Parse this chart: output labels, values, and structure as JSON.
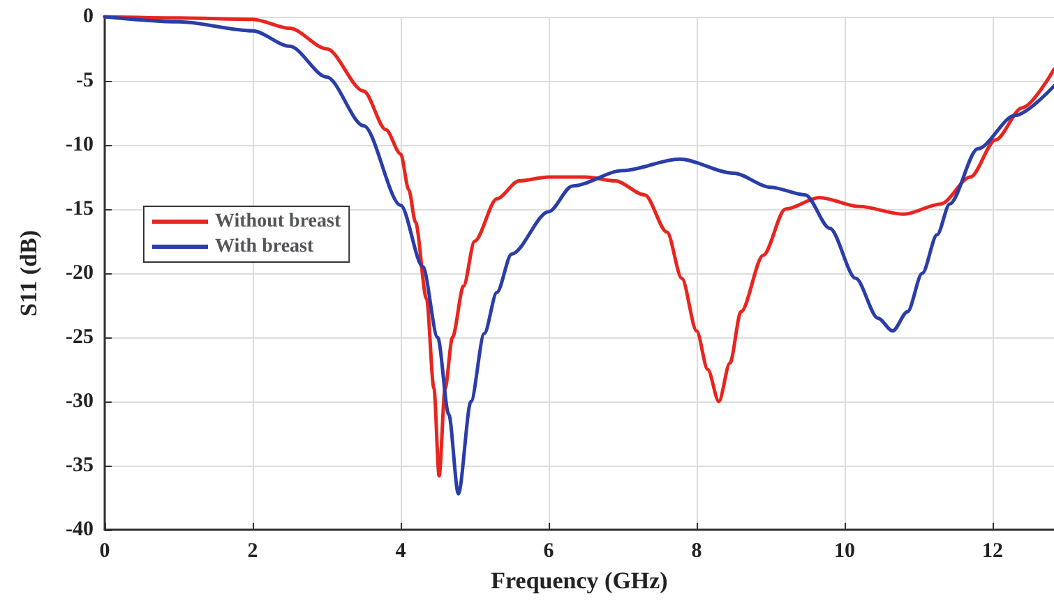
{
  "chart_data": {
    "type": "line",
    "xlabel": "Frequency (GHz)",
    "ylabel": "S11 (dB)",
    "xlim": [
      0,
      12.83
    ],
    "xticks": [
      0,
      2,
      4,
      6,
      8,
      10,
      12
    ],
    "ylim": [
      -40,
      0
    ],
    "yticks": [
      -40,
      -35,
      -30,
      -25,
      -20,
      -15,
      -10,
      -5,
      0
    ],
    "grid": true,
    "legend": "left",
    "marker": "none",
    "line_style": "solid",
    "series": [
      {
        "name": "Without breast",
        "color": "#e8251f",
        "x": [
          0,
          1,
          2,
          2.5,
          3,
          3.5,
          3.8,
          4,
          4.11,
          4.2,
          4.35,
          4.45,
          4.52,
          4.6,
          4.7,
          4.85,
          5,
          5.3,
          5.6,
          6,
          6.5,
          6.9,
          7.3,
          7.6,
          7.8,
          8,
          8.15,
          8.3,
          8.45,
          8.6,
          8.9,
          9.2,
          9.66,
          10.2,
          10.8,
          11.3,
          11.7,
          12.04,
          12.4,
          12.83
        ],
        "values": [
          0,
          -0.1,
          -0.2,
          -0.9,
          -2.5,
          -5.8,
          -8.8,
          -10.7,
          -13.5,
          -16,
          -22,
          -29,
          -35.8,
          -29,
          -25,
          -21,
          -17.5,
          -14.2,
          -12.8,
          -12.5,
          -12.5,
          -12.8,
          -13.9,
          -16.8,
          -20.4,
          -24.5,
          -27.5,
          -30,
          -27,
          -23,
          -18.6,
          -15,
          -14.1,
          -14.8,
          -15.4,
          -14.6,
          -12.5,
          -9.6,
          -7.1,
          -4.1
        ]
      },
      {
        "name": "With breast",
        "color": "#2a3da8",
        "x": [
          0,
          1,
          2,
          2.5,
          3,
          3.5,
          4,
          4.3,
          4.5,
          4.65,
          4.78,
          4.95,
          5.13,
          5.3,
          5.5,
          6,
          6.32,
          7,
          7.77,
          8.5,
          9,
          9.47,
          9.8,
          10.15,
          10.45,
          10.65,
          10.85,
          11.05,
          11.25,
          11.42,
          11.8,
          12.3,
          12.83
        ],
        "values": [
          0,
          -0.4,
          -1.1,
          -2.3,
          -4.7,
          -8.5,
          -14.7,
          -19.5,
          -25,
          -31,
          -37.2,
          -30,
          -24.7,
          -21.5,
          -18.5,
          -15.2,
          -13.2,
          -12,
          -11.1,
          -12.2,
          -13.3,
          -13.9,
          -16.5,
          -20.4,
          -23.5,
          -24.5,
          -23,
          -20,
          -17,
          -14.6,
          -10.3,
          -7.7,
          -5.4
        ]
      }
    ]
  }
}
